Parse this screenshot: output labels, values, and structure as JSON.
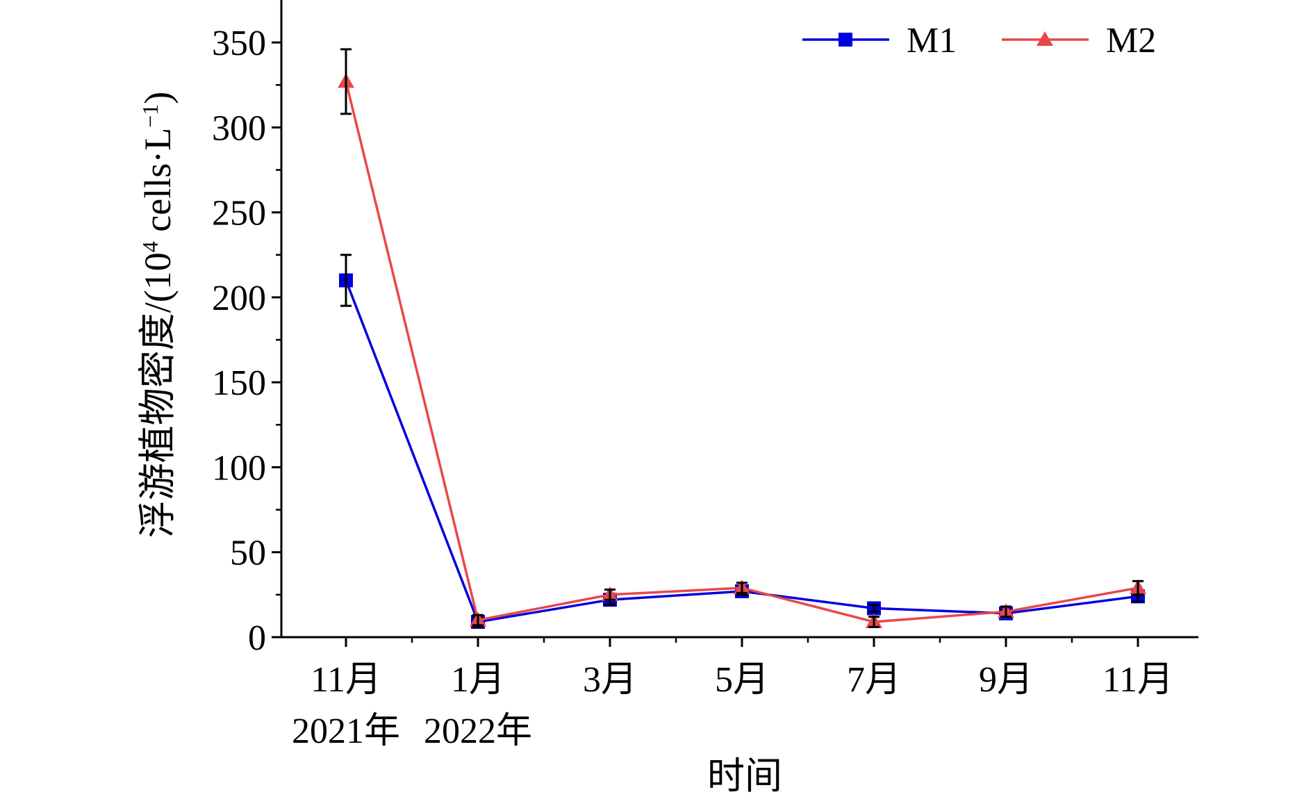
{
  "chart_data": {
    "type": "line",
    "categories": [
      "11月",
      "1月",
      "3月",
      "5月",
      "7月",
      "9月",
      "11月"
    ],
    "year_labels": [
      {
        "category_index": 0,
        "text": "2021年"
      },
      {
        "category_index": 1,
        "text": "2022年"
      }
    ],
    "xlabel": "时间",
    "ylabel_main": "浮游植物密度/(10",
    "ylabel_sup": "4",
    "ylabel_mid": " cells·L",
    "ylabel_sup2": "−1",
    "ylabel_end": ")",
    "ylim": [
      0,
      375
    ],
    "yticks": [
      0,
      50,
      100,
      150,
      200,
      250,
      300,
      350
    ],
    "yticks_text": [
      "0",
      "50",
      "100",
      "150",
      "200",
      "250",
      "300",
      "350"
    ],
    "series": [
      {
        "name": "M1",
        "color": "#0000dd",
        "marker": "square",
        "values": [
          210,
          9,
          22,
          27,
          17,
          14,
          24
        ],
        "errors": [
          15,
          3,
          3,
          2,
          2,
          2,
          3
        ]
      },
      {
        "name": "M2",
        "color": "#e8474a",
        "marker": "triangle",
        "values": [
          327,
          10,
          25,
          29,
          9,
          15,
          29
        ],
        "errors": [
          19,
          3,
          3,
          3,
          3,
          3,
          4
        ]
      }
    ],
    "legend_position": "top-right",
    "grid": false
  }
}
